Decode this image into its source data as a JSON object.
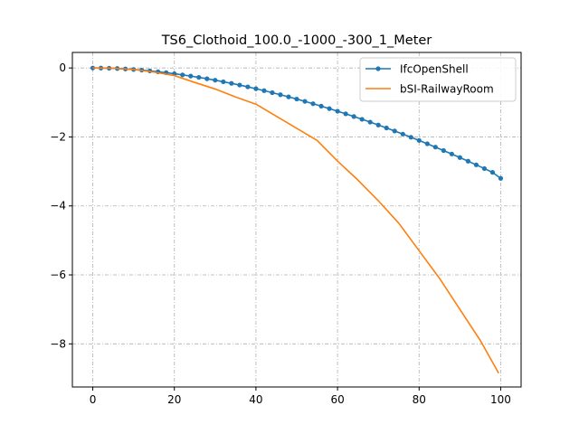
{
  "chart_data": {
    "type": "line",
    "title": "TS6_Clothoid_100.0_-1000_-300_1_Meter",
    "xlabel": "",
    "ylabel": "",
    "xlim": [
      -5,
      105
    ],
    "ylim": [
      -9.25,
      0.45
    ],
    "x_ticks": [
      0,
      20,
      40,
      60,
      80,
      100
    ],
    "y_ticks": [
      0,
      -2,
      -4,
      -6,
      -8
    ],
    "x_tick_labels": [
      "0",
      "20",
      "40",
      "60",
      "80",
      "100"
    ],
    "y_tick_labels": [
      "0",
      "−2",
      "−4",
      "−6",
      "−8"
    ],
    "grid": true,
    "legend_position": "top-right",
    "series": [
      {
        "name": "IfcOpenShell",
        "color": "#1f77b4",
        "marker": "dot",
        "x": [
          0,
          2,
          4,
          6,
          8,
          10,
          12,
          14,
          16,
          18,
          20,
          22,
          24,
          26,
          28,
          30,
          32,
          34,
          36,
          38,
          40,
          42,
          44,
          46,
          48,
          50,
          52,
          54,
          56,
          58,
          60,
          62,
          64,
          66,
          68,
          70,
          72,
          74,
          76,
          78,
          80,
          82,
          84,
          86,
          88,
          90,
          92,
          94,
          96,
          98,
          100
        ],
        "y": [
          0.0,
          -0.0018,
          -0.0073,
          -0.016,
          -0.029,
          -0.044,
          -0.063,
          -0.085,
          -0.11,
          -0.137,
          -0.167,
          -0.2,
          -0.235,
          -0.273,
          -0.313,
          -0.355,
          -0.4,
          -0.447,
          -0.496,
          -0.548,
          -0.602,
          -0.658,
          -0.716,
          -0.776,
          -0.838,
          -0.902,
          -0.968,
          -1.037,
          -1.107,
          -1.179,
          -1.254,
          -1.33,
          -1.408,
          -1.488,
          -1.57,
          -1.654,
          -1.74,
          -1.828,
          -1.917,
          -2.009,
          -2.102,
          -2.198,
          -2.295,
          -2.394,
          -2.495,
          -2.598,
          -2.702,
          -2.809,
          -2.917,
          -3.027,
          -3.2
        ]
      },
      {
        "name": "bSI-RailwayRoom",
        "color": "#ff7f0e",
        "marker": "none",
        "x": [
          0,
          5,
          10,
          15,
          20,
          25,
          30,
          35,
          40,
          45,
          50,
          55,
          60,
          65,
          70,
          75,
          80,
          85,
          90,
          95,
          99.5
        ],
        "y": [
          0.0,
          -0.011,
          -0.044,
          -0.12,
          -0.22,
          -0.42,
          -0.61,
          -0.84,
          -1.05,
          -1.4,
          -1.75,
          -2.1,
          -2.7,
          -3.25,
          -3.85,
          -4.5,
          -5.3,
          -6.1,
          -7.0,
          -7.9,
          -8.85
        ]
      }
    ]
  }
}
